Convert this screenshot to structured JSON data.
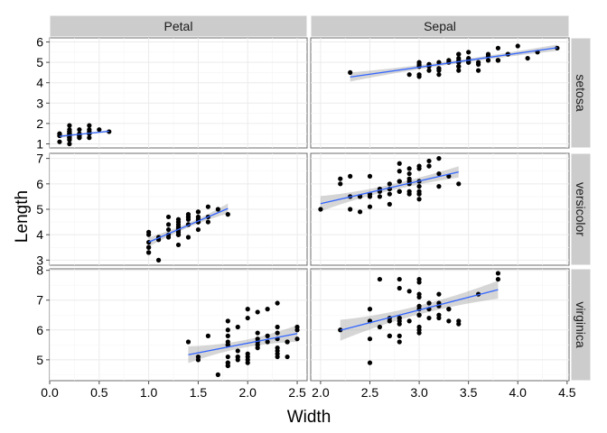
{
  "chart_data": {
    "type": "scatter",
    "xlabel": "Width",
    "ylabel": "Length",
    "col_facets": [
      "Petal",
      "Sepal"
    ],
    "row_facets": [
      "setosa",
      "versicolor",
      "virginica"
    ],
    "x_ticks": {
      "Petal": [
        "0.0",
        "0.5",
        "1.0",
        "1.5",
        "2.0",
        "2.5"
      ],
      "Sepal": [
        "2.0",
        "2.5",
        "3.0",
        "3.5",
        "4.0",
        "4.5"
      ]
    },
    "y_ticks": {
      "setosa": [
        "1",
        "2",
        "3",
        "4",
        "5",
        "6"
      ],
      "versicolor": [
        "3",
        "4",
        "5",
        "6",
        "7"
      ],
      "virginica": [
        "5",
        "6",
        "7",
        "8"
      ]
    },
    "xlim": {
      "Petal": [
        0,
        2.6
      ],
      "Sepal": [
        1.9,
        4.52
      ]
    },
    "ylim": {
      "setosa": [
        0.8,
        6.2
      ],
      "versicolor": [
        2.8,
        7.2
      ],
      "virginica": [
        4.3,
        8.05
      ]
    },
    "smooth": "lm",
    "grid": true,
    "panels": [
      {
        "col": "Petal",
        "row": "setosa",
        "x": [
          0.2,
          0.2,
          0.2,
          0.2,
          0.2,
          0.4,
          0.3,
          0.2,
          0.2,
          0.1,
          0.2,
          0.2,
          0.1,
          0.1,
          0.2,
          0.4,
          0.4,
          0.3,
          0.3,
          0.3,
          0.2,
          0.4,
          0.2,
          0.5,
          0.2,
          0.2,
          0.4,
          0.2,
          0.2,
          0.2,
          0.2,
          0.4,
          0.1,
          0.2,
          0.2,
          0.2,
          0.2,
          0.1,
          0.2,
          0.2,
          0.3,
          0.3,
          0.2,
          0.6,
          0.4,
          0.3,
          0.2,
          0.2,
          0.2,
          0.2
        ],
        "y": [
          1.4,
          1.4,
          1.3,
          1.5,
          1.4,
          1.7,
          1.4,
          1.5,
          1.4,
          1.5,
          1.5,
          1.6,
          1.4,
          1.1,
          1.2,
          1.5,
          1.3,
          1.4,
          1.7,
          1.5,
          1.7,
          1.5,
          1.0,
          1.7,
          1.9,
          1.6,
          1.6,
          1.5,
          1.4,
          1.6,
          1.6,
          1.5,
          1.5,
          1.4,
          1.5,
          1.2,
          1.3,
          1.4,
          1.3,
          1.5,
          1.3,
          1.3,
          1.3,
          1.6,
          1.9,
          1.4,
          1.6,
          1.4,
          1.5,
          1.4
        ],
        "fit": {
          "x": [
            0.1,
            0.6
          ],
          "y": [
            1.37,
            1.62
          ]
        },
        "band_half": [
          0.09,
          0.06
        ]
      },
      {
        "col": "Sepal",
        "row": "setosa",
        "x": [
          3.5,
          3.0,
          3.2,
          3.1,
          3.6,
          3.9,
          3.4,
          3.4,
          2.9,
          3.1,
          3.7,
          3.4,
          3.0,
          3.0,
          4.0,
          4.4,
          3.9,
          3.5,
          3.8,
          3.8,
          3.4,
          3.7,
          3.6,
          3.3,
          3.4,
          3.0,
          3.4,
          3.5,
          3.4,
          3.2,
          3.1,
          3.4,
          4.1,
          4.2,
          3.1,
          3.2,
          3.5,
          3.6,
          3.0,
          3.4,
          3.5,
          2.3,
          3.2,
          3.5,
          3.8,
          3.0,
          3.8,
          3.2,
          3.7,
          3.3
        ],
        "y": [
          5.1,
          4.9,
          4.7,
          4.6,
          5.0,
          5.4,
          4.6,
          5.0,
          4.4,
          4.9,
          5.4,
          4.8,
          4.8,
          4.3,
          5.8,
          5.7,
          5.4,
          5.1,
          5.7,
          5.1,
          5.4,
          5.1,
          4.6,
          5.1,
          4.8,
          5.0,
          5.0,
          5.2,
          5.2,
          4.7,
          4.8,
          5.4,
          5.2,
          5.5,
          4.9,
          5.0,
          5.5,
          4.9,
          4.4,
          5.1,
          5.0,
          4.5,
          4.4,
          5.0,
          5.1,
          4.8,
          5.1,
          4.6,
          5.3,
          5.0
        ],
        "fit": {
          "x": [
            2.3,
            4.4
          ],
          "y": [
            4.28,
            5.72
          ]
        },
        "band_half": [
          0.22,
          0.15
        ]
      },
      {
        "col": "Petal",
        "row": "versicolor",
        "x": [
          1.4,
          1.5,
          1.5,
          1.3,
          1.5,
          1.3,
          1.6,
          1.0,
          1.3,
          1.4,
          1.0,
          1.5,
          1.0,
          1.4,
          1.3,
          1.4,
          1.5,
          1.0,
          1.5,
          1.1,
          1.8,
          1.3,
          1.5,
          1.2,
          1.3,
          1.4,
          1.4,
          1.7,
          1.5,
          1.0,
          1.1,
          1.0,
          1.2,
          1.6,
          1.5,
          1.6,
          1.5,
          1.3,
          1.3,
          1.3,
          1.2,
          1.4,
          1.2,
          1.0,
          1.3,
          1.2,
          1.3,
          1.3,
          1.1,
          1.3
        ],
        "y": [
          4.7,
          4.5,
          4.9,
          4.0,
          4.6,
          4.5,
          4.7,
          3.3,
          4.6,
          3.9,
          3.5,
          4.2,
          4.0,
          4.7,
          3.6,
          4.4,
          4.5,
          4.1,
          4.5,
          3.9,
          4.8,
          4.0,
          4.9,
          4.7,
          4.3,
          4.4,
          4.8,
          5.0,
          4.5,
          3.5,
          3.8,
          3.7,
          3.9,
          5.1,
          4.5,
          4.5,
          4.7,
          4.4,
          4.1,
          4.0,
          4.4,
          4.6,
          4.0,
          3.3,
          4.2,
          4.2,
          4.2,
          4.3,
          3.0,
          4.1
        ],
        "fit": {
          "x": [
            1.0,
            1.8
          ],
          "y": [
            3.71,
            5.03
          ]
        },
        "band_half": [
          0.18,
          0.2
        ]
      },
      {
        "col": "Sepal",
        "row": "versicolor",
        "x": [
          3.2,
          3.2,
          3.1,
          2.3,
          2.8,
          2.8,
          3.3,
          2.4,
          2.9,
          2.7,
          2.0,
          3.0,
          2.2,
          2.9,
          2.9,
          3.1,
          3.0,
          2.7,
          2.2,
          2.5,
          3.2,
          2.8,
          2.5,
          2.8,
          2.9,
          3.0,
          2.8,
          3.0,
          2.9,
          2.6,
          2.4,
          2.4,
          2.7,
          2.7,
          3.0,
          3.4,
          3.1,
          2.3,
          3.0,
          2.5,
          2.6,
          3.0,
          2.6,
          2.3,
          2.7,
          3.0,
          2.9,
          2.9,
          2.5,
          2.8
        ],
        "y": [
          7.0,
          6.4,
          6.9,
          5.5,
          6.5,
          5.7,
          6.3,
          4.9,
          6.6,
          5.2,
          5.0,
          5.9,
          6.0,
          6.1,
          5.6,
          6.7,
          5.6,
          5.8,
          6.2,
          5.6,
          5.9,
          6.1,
          6.3,
          6.1,
          6.4,
          6.6,
          6.8,
          6.7,
          6.0,
          5.7,
          5.5,
          5.5,
          5.8,
          6.0,
          5.4,
          6.0,
          6.7,
          6.3,
          5.6,
          5.5,
          5.5,
          6.1,
          5.8,
          5.0,
          5.6,
          5.7,
          5.7,
          6.2,
          5.1,
          5.7
        ],
        "fit": {
          "x": [
            2.0,
            3.4
          ],
          "y": [
            5.22,
            6.47
          ]
        },
        "band_half": [
          0.3,
          0.22
        ]
      },
      {
        "col": "Petal",
        "row": "virginica",
        "x": [
          2.5,
          1.9,
          2.1,
          1.8,
          2.2,
          2.1,
          1.7,
          1.8,
          1.8,
          2.5,
          2.0,
          1.9,
          2.1,
          2.0,
          2.4,
          2.3,
          1.8,
          2.2,
          2.3,
          1.5,
          2.3,
          2.0,
          2.0,
          1.8,
          2.1,
          1.8,
          1.8,
          1.8,
          2.1,
          1.6,
          1.9,
          2.0,
          2.2,
          1.5,
          1.4,
          2.3,
          2.4,
          1.8,
          1.8,
          2.1,
          2.4,
          2.3,
          1.9,
          2.3,
          2.5,
          2.3,
          1.9,
          2.0,
          2.3,
          1.8
        ],
        "y": [
          6.0,
          5.1,
          5.9,
          5.6,
          5.8,
          6.6,
          4.5,
          6.3,
          5.8,
          6.1,
          5.1,
          5.3,
          5.5,
          5.0,
          5.1,
          5.3,
          5.5,
          6.7,
          6.9,
          5.0,
          5.7,
          4.9,
          6.7,
          4.9,
          5.7,
          6.0,
          4.8,
          4.9,
          5.6,
          5.8,
          6.1,
          6.4,
          5.6,
          5.1,
          5.6,
          6.1,
          5.6,
          5.5,
          4.8,
          5.4,
          5.6,
          5.1,
          5.1,
          5.9,
          5.7,
          5.2,
          5.0,
          5.2,
          5.4,
          5.1
        ],
        "fit": {
          "x": [
            1.4,
            2.5
          ],
          "y": [
            5.17,
            5.88
          ]
        },
        "band_half": [
          0.28,
          0.28
        ]
      },
      {
        "col": "Sepal",
        "row": "virginica",
        "x": [
          3.3,
          2.7,
          3.0,
          2.9,
          3.0,
          3.0,
          2.5,
          2.9,
          2.5,
          3.6,
          3.2,
          2.7,
          3.0,
          2.5,
          2.8,
          3.2,
          3.0,
          3.8,
          2.6,
          2.2,
          3.2,
          2.8,
          2.8,
          2.7,
          3.3,
          3.2,
          2.8,
          3.0,
          2.8,
          3.0,
          2.8,
          3.8,
          2.8,
          2.8,
          2.6,
          3.0,
          3.4,
          3.1,
          3.0,
          3.1,
          3.1,
          3.1,
          2.7,
          3.2,
          3.3,
          3.0,
          2.5,
          3.0,
          3.4,
          3.0
        ],
        "y": [
          6.3,
          5.8,
          7.1,
          6.3,
          6.5,
          7.6,
          4.9,
          7.3,
          6.7,
          7.2,
          6.5,
          6.4,
          6.8,
          5.7,
          5.8,
          6.4,
          6.5,
          7.7,
          7.7,
          6.0,
          6.9,
          5.6,
          7.7,
          6.3,
          6.7,
          7.2,
          6.2,
          6.1,
          6.4,
          7.2,
          7.4,
          7.9,
          6.4,
          6.3,
          6.1,
          7.7,
          6.3,
          6.4,
          6.0,
          6.9,
          6.7,
          6.9,
          5.8,
          6.8,
          6.7,
          6.7,
          6.3,
          6.5,
          6.2,
          5.9
        ],
        "fit": {
          "x": [
            2.2,
            3.8
          ],
          "y": [
            5.99,
            7.35
          ]
        },
        "band_half": [
          0.35,
          0.3
        ]
      }
    ]
  }
}
